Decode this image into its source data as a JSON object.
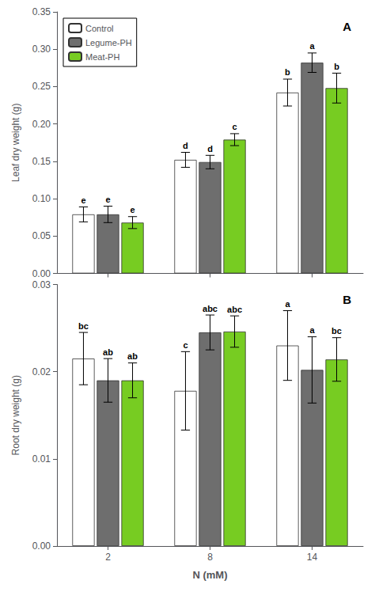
{
  "chart_data": [
    {
      "type": "bar",
      "title": "A",
      "ylabel": "Leaf dry weight (g)",
      "categories": [
        "2",
        "8",
        "14"
      ],
      "series": [
        {
          "name": "Control",
          "color": "#ffffff",
          "values": [
            0.079,
            0.152,
            0.242
          ],
          "errors": [
            0.01,
            0.01,
            0.018
          ],
          "letters": [
            "e",
            "d",
            "b"
          ]
        },
        {
          "name": "Legume-PH",
          "color": "#6e6e6e",
          "values": [
            0.079,
            0.149,
            0.282
          ],
          "errors": [
            0.011,
            0.009,
            0.013
          ],
          "letters": [
            "e",
            "d",
            "a"
          ]
        },
        {
          "name": "Meat-PH",
          "color": "#77cc22",
          "values": [
            0.068,
            0.179,
            0.248
          ],
          "errors": [
            0.008,
            0.008,
            0.02
          ],
          "letters": [
            "e",
            "c",
            "b"
          ]
        }
      ],
      "ylim": [
        0,
        0.35
      ],
      "yticks": [
        {
          "value": 0,
          "label": "0.00"
        },
        0.05,
        {
          "value": 0.1,
          "label": "0.10"
        },
        0.15,
        {
          "value": 0.2,
          "label": "0.20"
        },
        0.25,
        {
          "value": 0.3,
          "label": "0.30"
        },
        0.35
      ],
      "tick_labels": "y",
      "legend": "upper left",
      "grid": false
    },
    {
      "type": "bar",
      "title": "B",
      "ylabel": "Root dry weight (g)",
      "xlabel": "N (mM)",
      "categories": [
        "2",
        "8",
        "14"
      ],
      "series": [
        {
          "name": "Control",
          "color": "#ffffff",
          "values": [
            0.0215,
            0.0178,
            0.023
          ],
          "errors": [
            0.003,
            0.0045,
            0.004
          ],
          "letters": [
            "bc",
            "c",
            "a"
          ]
        },
        {
          "name": "Legume-PH",
          "color": "#6e6e6e",
          "values": [
            0.019,
            0.0245,
            0.0202
          ],
          "errors": [
            0.0025,
            0.002,
            0.0038
          ],
          "letters": [
            "ab",
            "abc",
            "a"
          ]
        },
        {
          "name": "Meat-PH",
          "color": "#77cc22",
          "values": [
            0.019,
            0.0246,
            0.0214
          ],
          "errors": [
            0.002,
            0.0018,
            0.0025
          ],
          "letters": [
            "ab",
            "abc",
            "bc"
          ]
        }
      ],
      "ylim": [
        0,
        0.03
      ],
      "yticks": [
        {
          "value": 0,
          "label": "0.00"
        },
        0.01,
        0.02,
        0.03
      ],
      "grid": false
    }
  ]
}
